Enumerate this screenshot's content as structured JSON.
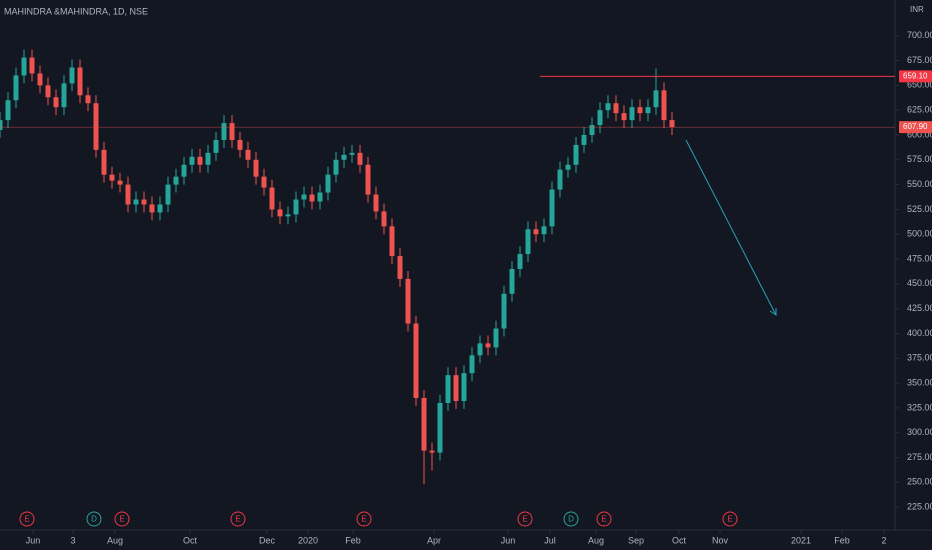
{
  "chart_data": {
    "type": "candlestick",
    "title": "MAHINDRA &MAHINDRA, 1D, NSE",
    "currency": "INR",
    "up_color": "#26a69a",
    "down_color": "#ef5350",
    "grid": false,
    "xlim": [
      0,
      447.5
    ],
    "ylim": [
      202,
      736
    ],
    "xticks": [
      {
        "value": 16.5,
        "label": "Jun"
      },
      {
        "value": 36.5,
        "label": "3"
      },
      {
        "value": 57.5,
        "label": "Aug"
      },
      {
        "value": 95,
        "label": "Oct"
      },
      {
        "value": 133.5,
        "label": "Dec"
      },
      {
        "value": 154,
        "label": "2020"
      },
      {
        "value": 176.5,
        "label": "Feb"
      },
      {
        "value": 217,
        "label": "Apr"
      },
      {
        "value": 254,
        "label": "Jun"
      },
      {
        "value": 275,
        "label": "Jul"
      },
      {
        "value": 298,
        "label": "Aug"
      },
      {
        "value": 318,
        "label": "Sep"
      },
      {
        "value": 339.5,
        "label": "Oct"
      },
      {
        "value": 360,
        "label": "Nov"
      },
      {
        "value": 400.5,
        "label": "2021"
      },
      {
        "value": 421,
        "label": "Feb"
      },
      {
        "value": 442,
        "label": "2"
      }
    ],
    "yticks": [
      {
        "value": 225,
        "label": "225.00"
      },
      {
        "value": 250,
        "label": "250.00"
      },
      {
        "value": 275,
        "label": "275.00"
      },
      {
        "value": 300,
        "label": "300.00"
      },
      {
        "value": 325,
        "label": "325.00"
      },
      {
        "value": 350,
        "label": "350.00"
      },
      {
        "value": 375,
        "label": "375.00"
      },
      {
        "value": 400,
        "label": "400.00"
      },
      {
        "value": 425,
        "label": "425.00"
      },
      {
        "value": 450,
        "label": "450.00"
      },
      {
        "value": 475,
        "label": "475.00"
      },
      {
        "value": 500,
        "label": "500.00"
      },
      {
        "value": 525,
        "label": "525.00"
      },
      {
        "value": 550,
        "label": "550.00"
      },
      {
        "value": 575,
        "label": "575.00"
      },
      {
        "value": 600,
        "label": "600.00"
      },
      {
        "value": 625,
        "label": "625.00"
      },
      {
        "value": 650,
        "label": "650.00"
      },
      {
        "value": 675,
        "label": "675.00"
      },
      {
        "value": 700,
        "label": "700.00"
      }
    ],
    "x": [
      0,
      4,
      8,
      12,
      16,
      20,
      24,
      28,
      32,
      36,
      40,
      44,
      48,
      52,
      56,
      60,
      64,
      68,
      72,
      76,
      80,
      84,
      88,
      92,
      96,
      100,
      104,
      108,
      112,
      116,
      120,
      124,
      128,
      132,
      136,
      140,
      144,
      148,
      152,
      156,
      160,
      164,
      168,
      172,
      176,
      180,
      184,
      188,
      192,
      196,
      200,
      204,
      208,
      212,
      216,
      220,
      224,
      228,
      232,
      236,
      240,
      244,
      248,
      252,
      256,
      260,
      264,
      268,
      272,
      276,
      280,
      284,
      288,
      292,
      296,
      300,
      304,
      308,
      312,
      316,
      320,
      324,
      328,
      332,
      336
    ],
    "open": [
      605,
      615,
      635,
      660,
      678,
      662,
      650,
      638,
      628,
      652,
      668,
      640,
      632,
      585,
      560,
      554,
      550,
      530,
      535,
      530,
      522,
      530,
      550,
      558,
      570,
      578,
      570,
      582,
      595,
      612,
      595,
      585,
      575,
      558,
      547,
      525,
      518,
      520,
      535,
      540,
      533,
      542,
      560,
      575,
      580,
      582,
      570,
      540,
      523,
      508,
      478,
      455,
      410,
      335,
      282,
      280,
      330,
      358,
      332,
      360,
      378,
      390,
      386,
      405,
      440,
      465,
      480,
      505,
      500,
      508,
      545,
      565,
      570,
      590,
      600,
      610,
      625,
      632,
      622,
      615,
      628,
      622,
      628,
      645,
      615
    ],
    "high": [
      623,
      643,
      668,
      686,
      686,
      670,
      658,
      646,
      660,
      676,
      676,
      648,
      640,
      593,
      568,
      562,
      558,
      543,
      543,
      538,
      538,
      558,
      566,
      578,
      586,
      586,
      590,
      603,
      620,
      620,
      603,
      593,
      583,
      566,
      555,
      533,
      528,
      543,
      548,
      548,
      550,
      568,
      583,
      588,
      590,
      590,
      578,
      548,
      531,
      516,
      486,
      463,
      418,
      343,
      290,
      338,
      366,
      366,
      368,
      386,
      398,
      398,
      413,
      448,
      473,
      488,
      513,
      513,
      516,
      553,
      573,
      578,
      598,
      608,
      618,
      633,
      640,
      640,
      630,
      636,
      636,
      636,
      667,
      653,
      623
    ],
    "low": [
      597,
      607,
      627,
      652,
      654,
      642,
      630,
      620,
      620,
      644,
      632,
      624,
      577,
      552,
      546,
      542,
      522,
      522,
      522,
      514,
      514,
      522,
      542,
      550,
      562,
      562,
      562,
      574,
      587,
      587,
      577,
      567,
      550,
      539,
      517,
      510,
      510,
      512,
      527,
      525,
      525,
      534,
      552,
      567,
      572,
      562,
      532,
      515,
      500,
      470,
      447,
      402,
      327,
      248,
      262,
      272,
      322,
      324,
      324,
      352,
      370,
      378,
      378,
      397,
      432,
      457,
      472,
      492,
      492,
      500,
      537,
      557,
      562,
      582,
      592,
      602,
      617,
      614,
      607,
      607,
      614,
      614,
      620,
      607,
      600
    ],
    "close": [
      615,
      635,
      660,
      678,
      662,
      650,
      638,
      628,
      652,
      668,
      640,
      632,
      585,
      560,
      554,
      550,
      530,
      535,
      530,
      522,
      530,
      550,
      558,
      570,
      578,
      570,
      582,
      595,
      612,
      595,
      585,
      575,
      558,
      547,
      525,
      518,
      520,
      535,
      540,
      533,
      542,
      560,
      575,
      580,
      582,
      570,
      540,
      523,
      508,
      478,
      455,
      410,
      335,
      282,
      280,
      330,
      358,
      332,
      360,
      378,
      390,
      386,
      405,
      440,
      465,
      480,
      505,
      500,
      508,
      545,
      565,
      570,
      590,
      600,
      610,
      625,
      632,
      622,
      615,
      628,
      622,
      628,
      645,
      615,
      607.9
    ],
    "price_lines": [
      {
        "value": 659.1,
        "label": "659.10",
        "color": "#f23645",
        "x_start": 270
      },
      {
        "value": 607.9,
        "label": "607.90",
        "color": "#ef5350",
        "x_start": 0
      }
    ],
    "events": [
      {
        "label": "E",
        "x": 13.5,
        "color": "#f23645"
      },
      {
        "label": "D",
        "x": 47,
        "color": "#26a69a"
      },
      {
        "label": "E",
        "x": 61,
        "color": "#f23645"
      },
      {
        "label": "E",
        "x": 119,
        "color": "#f23645"
      },
      {
        "label": "E",
        "x": 182,
        "color": "#f23645"
      },
      {
        "label": "E",
        "x": 262.5,
        "color": "#f23645"
      },
      {
        "label": "D",
        "x": 285.5,
        "color": "#26a69a"
      },
      {
        "label": "E",
        "x": 302,
        "color": "#f23645"
      },
      {
        "label": "E",
        "x": 365,
        "color": "#f23645"
      }
    ]
  }
}
